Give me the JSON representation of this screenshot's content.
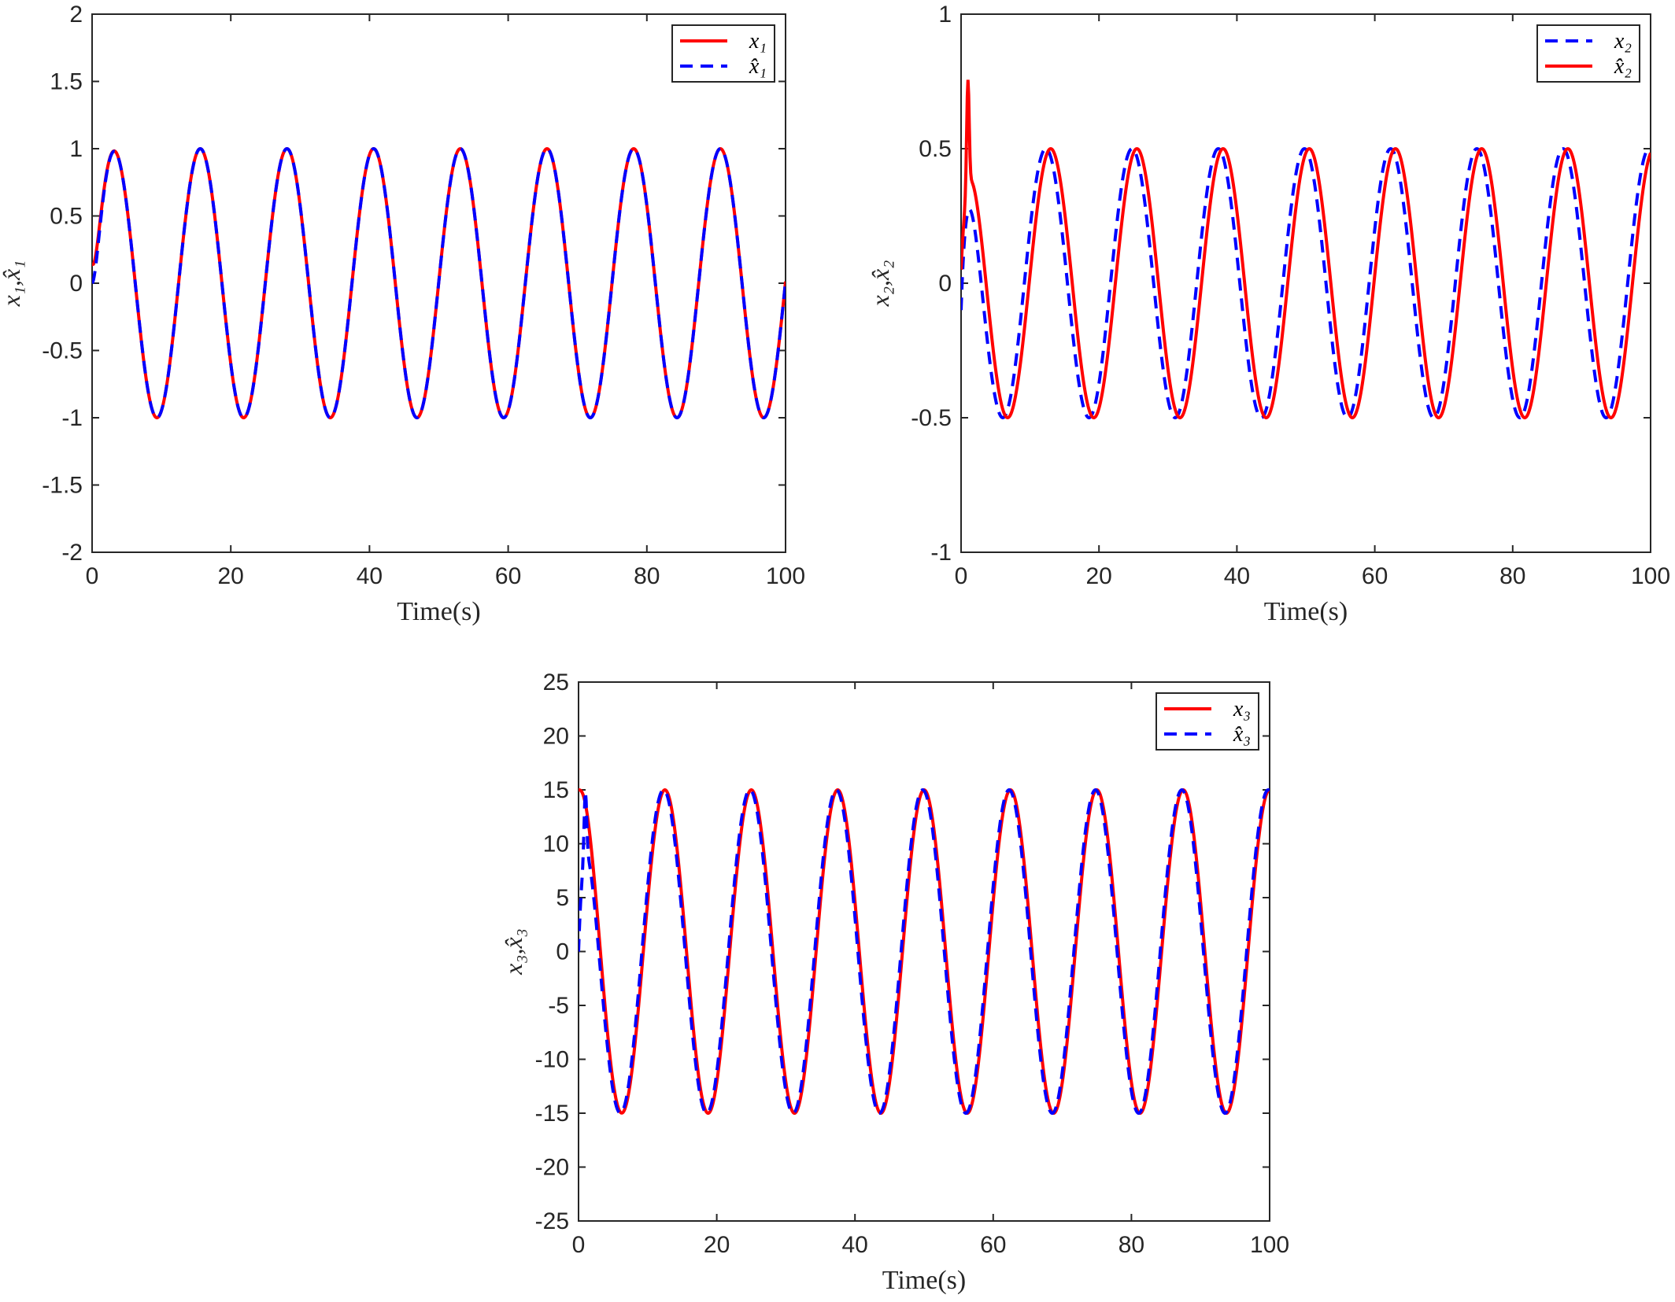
{
  "chart_data": [
    {
      "type": "line",
      "xlabel": "Time(s)",
      "ylabel": "x₁,x̂₁",
      "xlim": [
        0,
        100
      ],
      "ylim": [
        -2,
        2
      ],
      "xticks": [
        0,
        20,
        40,
        60,
        80,
        100
      ],
      "yticks": [
        -2,
        -1.5,
        -1,
        -0.5,
        0,
        0.5,
        1,
        1.5,
        2
      ],
      "grid": false,
      "legend_position": "top-right",
      "series": [
        {
          "name": "x₁",
          "color": "#ff0000",
          "style": "solid",
          "amplitude": 1,
          "period_s": 12.5,
          "phase_s": 3.1,
          "start_value": 0.15
        },
        {
          "name": "x̂₁",
          "color": "#0000ff",
          "style": "dashed",
          "amplitude": 1,
          "period_s": 12.5,
          "phase_s": 3.1,
          "start_value": 0
        }
      ]
    },
    {
      "type": "line",
      "xlabel": "Time(s)",
      "ylabel": "x₂,x̂₂",
      "xlim": [
        0,
        100
      ],
      "ylim": [
        -1,
        1
      ],
      "xticks": [
        0,
        20,
        40,
        60,
        80,
        100
      ],
      "yticks": [
        -1,
        -0.5,
        0,
        0.5,
        1
      ],
      "grid": false,
      "legend_position": "top-right",
      "series": [
        {
          "name": "x₂",
          "color": "#0000ff",
          "style": "dashed",
          "amplitude": 0.5,
          "period_s": 12.5,
          "phase_s": 12.3,
          "start_value": -0.1
        },
        {
          "name": "x̂₂",
          "color": "#ff0000",
          "style": "solid",
          "amplitude": 0.5,
          "period_s": 12.5,
          "phase_s": 13.0,
          "start_value": 0.05,
          "peak_value": 0.8
        }
      ]
    },
    {
      "type": "line",
      "xlabel": "Time(s)",
      "ylabel": "x₃,x̂₃",
      "xlim": [
        0,
        100
      ],
      "ylim": [
        -25,
        25
      ],
      "xticks": [
        0,
        20,
        40,
        60,
        80,
        100
      ],
      "yticks": [
        -25,
        -20,
        -15,
        -10,
        -5,
        0,
        5,
        10,
        15,
        20,
        25
      ],
      "grid": false,
      "legend_position": "top-right",
      "series": [
        {
          "name": "x₃",
          "color": "#ff0000",
          "style": "solid",
          "amplitude": 15,
          "period_s": 12.5,
          "phase_s": 12.5,
          "start_value": 15
        },
        {
          "name": "x̂₃",
          "color": "#0000ff",
          "style": "dashed",
          "amplitude": 15,
          "period_s": 12.5,
          "phase_s": 12.3,
          "start_value": 0,
          "peak_value": 15.5
        }
      ]
    }
  ]
}
